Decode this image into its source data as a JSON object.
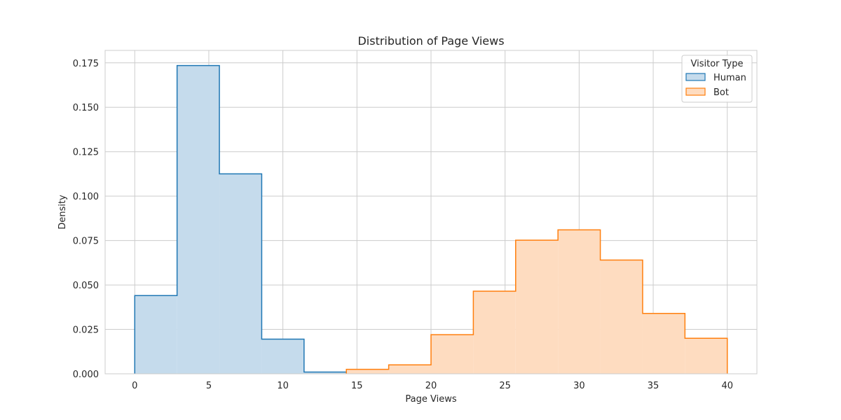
{
  "chart_data": {
    "type": "histogram",
    "title": "Distribution of Page Views",
    "xlabel": "Page Views",
    "ylabel": "Density",
    "xlim": [
      -2,
      42
    ],
    "ylim": [
      0,
      0.182
    ],
    "xticks": [
      0,
      5,
      10,
      15,
      20,
      25,
      30,
      35,
      40
    ],
    "xtick_labels": [
      "0",
      "5",
      "10",
      "15",
      "20",
      "25",
      "30",
      "35",
      "40"
    ],
    "yticks": [
      0,
      0.025,
      0.05,
      0.075,
      0.1,
      0.125,
      0.15,
      0.175
    ],
    "ytick_labels": [
      "0.000",
      "0.025",
      "0.050",
      "0.075",
      "0.100",
      "0.125",
      "0.150",
      "0.175"
    ],
    "grid": true,
    "bin_edges": [
      0,
      2.857,
      5.714,
      8.571,
      11.429,
      14.286,
      17.143,
      20.0,
      22.857,
      25.714,
      28.571,
      31.429,
      34.286,
      37.143,
      40.0
    ],
    "legend": {
      "title": "Visitor Type",
      "placement": "top-right"
    },
    "series": [
      {
        "name": "Human",
        "color": "#1f77b4",
        "fill": "#c5dbec",
        "densities": [
          0.044,
          0.1735,
          0.1125,
          0.0195,
          0.001,
          0,
          0,
          0,
          0,
          0,
          0,
          0,
          0,
          0
        ]
      },
      {
        "name": "Bot",
        "color": "#ff7f0e",
        "fill": "#fedcc0",
        "densities": [
          0,
          0,
          0,
          0,
          0,
          0.0025,
          0.005,
          0.022,
          0.0465,
          0.0752,
          0.081,
          0.064,
          0.034,
          0.02
        ]
      }
    ]
  }
}
